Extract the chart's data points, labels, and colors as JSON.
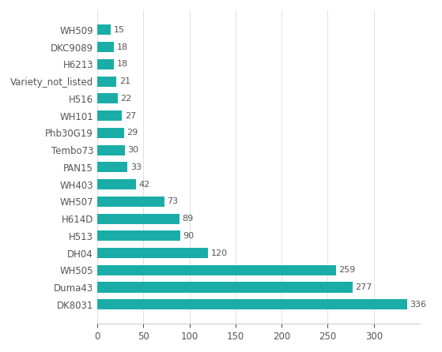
{
  "categories": [
    "WH509",
    "DKC9089",
    "H6213",
    "Variety_not_listed",
    "H516",
    "WH101",
    "Phb30G19",
    "Tembo73",
    "PAN15",
    "WH403",
    "WH507",
    "H614D",
    "H513",
    "DH04",
    "WH505",
    "Duma43",
    "DK8031"
  ],
  "values": [
    15,
    18,
    18,
    21,
    22,
    27,
    29,
    30,
    33,
    42,
    73,
    89,
    90,
    120,
    259,
    277,
    336
  ],
  "bar_color": "#1AADA8",
  "label_color": "#555555",
  "background_color": "#ffffff",
  "xlim": [
    0,
    350
  ],
  "xticks": [
    0,
    50,
    100,
    150,
    200,
    250,
    300
  ],
  "tick_fontsize": 8.5,
  "label_fontsize": 8.5,
  "value_fontsize": 8
}
